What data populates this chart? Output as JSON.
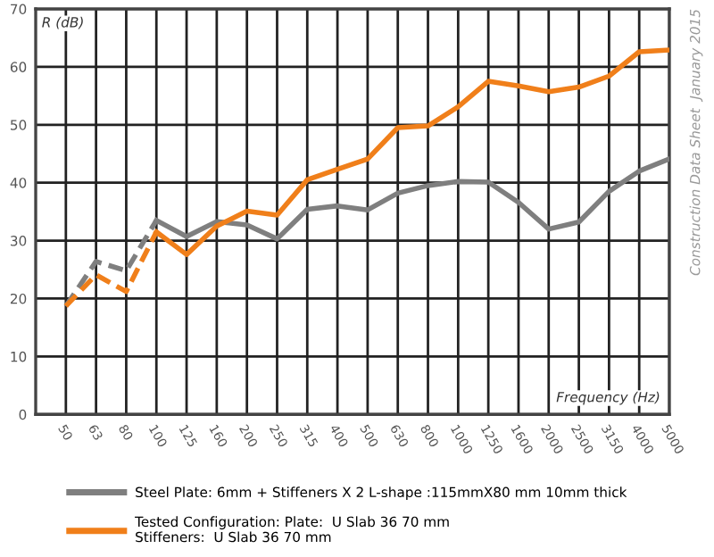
{
  "chart_data": {
    "type": "line",
    "xlabel": "Frequency (Hz)",
    "ylabel": "R (dB)",
    "categories": [
      "50",
      "63",
      "80",
      "100",
      "125",
      "160",
      "200",
      "250",
      "315",
      "400",
      "500",
      "630",
      "800",
      "1000",
      "1250",
      "1600",
      "2000",
      "2500",
      "3150",
      "4000",
      "5000"
    ],
    "series": [
      {
        "color": "#7f7f7f",
        "line_style": "dashed",
        "values": [
          18.7,
          26.4,
          24.8,
          33.5,
          null,
          null,
          null,
          null,
          null,
          null,
          null,
          null,
          null,
          null,
          null,
          null,
          null,
          null,
          null,
          null,
          null
        ]
      },
      {
        "color": "#f07f1a",
        "line_style": "dashed",
        "values": [
          18.7,
          24.1,
          21.2,
          31.5,
          null,
          null,
          null,
          null,
          null,
          null,
          null,
          null,
          null,
          null,
          null,
          null,
          null,
          null,
          null,
          null,
          null
        ]
      },
      {
        "name": "Steel Plate: 6mm + Stiffeners X 2 L-shape :115mmX80 mm 10mm thick",
        "color": "#7f7f7f",
        "line_style": "solid",
        "values": [
          null,
          null,
          null,
          33.5,
          30.7,
          33.3,
          32.7,
          30.3,
          35.4,
          36.0,
          35.3,
          38.2,
          39.5,
          40.2,
          40.1,
          36.6,
          32.0,
          33.2,
          38.5,
          42.0,
          44.1
        ]
      },
      {
        "name": "Tested Configuration: Plate:  U Slab 36 70 mm\nStiffeners:  U Slab 36 70 mm",
        "color": "#f07f1a",
        "line_style": "solid",
        "values": [
          null,
          null,
          null,
          31.5,
          27.6,
          32.5,
          35.1,
          34.4,
          40.5,
          42.3,
          44.1,
          49.5,
          49.8,
          53.1,
          57.5,
          56.7,
          55.7,
          56.5,
          58.4,
          62.6,
          62.9
        ]
      }
    ],
    "ylim": [
      0,
      70
    ],
    "yticks": [
      0,
      10,
      20,
      30,
      40,
      50,
      60,
      70
    ],
    "grid": true,
    "legend": "bottom",
    "marker": "none",
    "annotations": [
      "Construction Data Sheet  January 2015"
    ]
  }
}
